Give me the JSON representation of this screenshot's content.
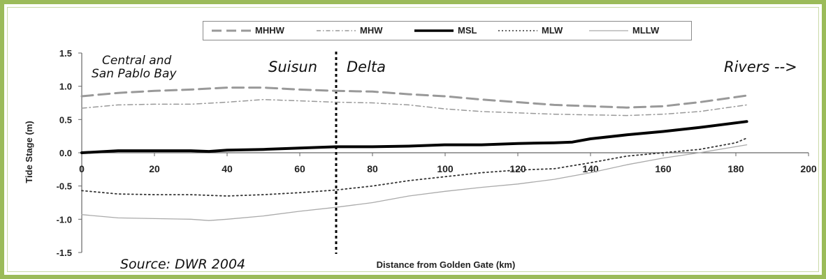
{
  "chart_data": {
    "type": "line",
    "xlabel": "Distance from Golden Gate (km)",
    "ylabel": "Tide Stage (m)",
    "xlim": [
      0,
      200
    ],
    "ylim": [
      -1.5,
      1.5
    ],
    "x_ticks": [
      "0",
      "20",
      "40",
      "60",
      "80",
      "100",
      "120",
      "140",
      "160",
      "180",
      "200"
    ],
    "y_ticks": [
      "1.5",
      "1.0",
      "0.5",
      "0.0",
      "-0.5",
      "-1.0",
      "-1.5"
    ],
    "grid": false,
    "legend_position": "top",
    "annotations": {
      "region_bay_line1": "Central and",
      "region_bay_line2": "San Pablo Bay",
      "region_suisun": "Suisun",
      "region_delta": "Delta",
      "region_rivers": "Rivers -->",
      "divider_x": 70
    },
    "series": [
      {
        "name": "MHHW",
        "style": "long-dash",
        "color": "#999999",
        "x": [
          0,
          10,
          20,
          30,
          40,
          50,
          60,
          70,
          80,
          90,
          100,
          110,
          120,
          130,
          140,
          150,
          160,
          170,
          183
        ],
        "y": [
          0.85,
          0.9,
          0.93,
          0.95,
          0.98,
          0.98,
          0.95,
          0.93,
          0.92,
          0.88,
          0.85,
          0.8,
          0.76,
          0.72,
          0.7,
          0.68,
          0.7,
          0.76,
          0.86
        ]
      },
      {
        "name": "MHW",
        "style": "dash-dot",
        "color": "#999999",
        "x": [
          0,
          10,
          20,
          30,
          40,
          50,
          60,
          70,
          80,
          90,
          100,
          110,
          120,
          130,
          140,
          150,
          160,
          170,
          183
        ],
        "y": [
          0.67,
          0.72,
          0.73,
          0.73,
          0.76,
          0.8,
          0.78,
          0.76,
          0.75,
          0.72,
          0.66,
          0.62,
          0.6,
          0.58,
          0.57,
          0.56,
          0.58,
          0.62,
          0.72
        ]
      },
      {
        "name": "MSL",
        "style": "solid-thick",
        "color": "#000000",
        "x": [
          0,
          10,
          20,
          30,
          35,
          40,
          50,
          60,
          70,
          80,
          90,
          100,
          110,
          120,
          130,
          135,
          140,
          150,
          160,
          170,
          183
        ],
        "y": [
          0.0,
          0.03,
          0.03,
          0.03,
          0.02,
          0.04,
          0.05,
          0.07,
          0.09,
          0.09,
          0.1,
          0.12,
          0.12,
          0.14,
          0.15,
          0.16,
          0.21,
          0.27,
          0.32,
          0.38,
          0.47
        ]
      },
      {
        "name": "MLW",
        "style": "dotted",
        "color": "#333333",
        "x": [
          0,
          10,
          20,
          30,
          40,
          50,
          60,
          70,
          80,
          90,
          100,
          110,
          120,
          130,
          140,
          150,
          160,
          170,
          180,
          183
        ],
        "y": [
          -0.57,
          -0.62,
          -0.63,
          -0.63,
          -0.65,
          -0.63,
          -0.6,
          -0.56,
          -0.5,
          -0.42,
          -0.36,
          -0.3,
          -0.26,
          -0.24,
          -0.15,
          -0.05,
          0.0,
          0.05,
          0.15,
          0.22
        ]
      },
      {
        "name": "MLLW",
        "style": "solid-thin",
        "color": "#aaaaaa",
        "x": [
          0,
          10,
          20,
          30,
          35,
          40,
          50,
          60,
          70,
          80,
          90,
          100,
          110,
          120,
          130,
          140,
          150,
          160,
          170,
          183
        ],
        "y": [
          -0.93,
          -0.98,
          -0.99,
          -1.0,
          -1.02,
          -1.0,
          -0.95,
          -0.88,
          -0.82,
          -0.75,
          -0.65,
          -0.58,
          -0.52,
          -0.47,
          -0.4,
          -0.3,
          -0.18,
          -0.08,
          0.0,
          0.12
        ]
      }
    ]
  },
  "source_note": "Source: DWR 2004"
}
